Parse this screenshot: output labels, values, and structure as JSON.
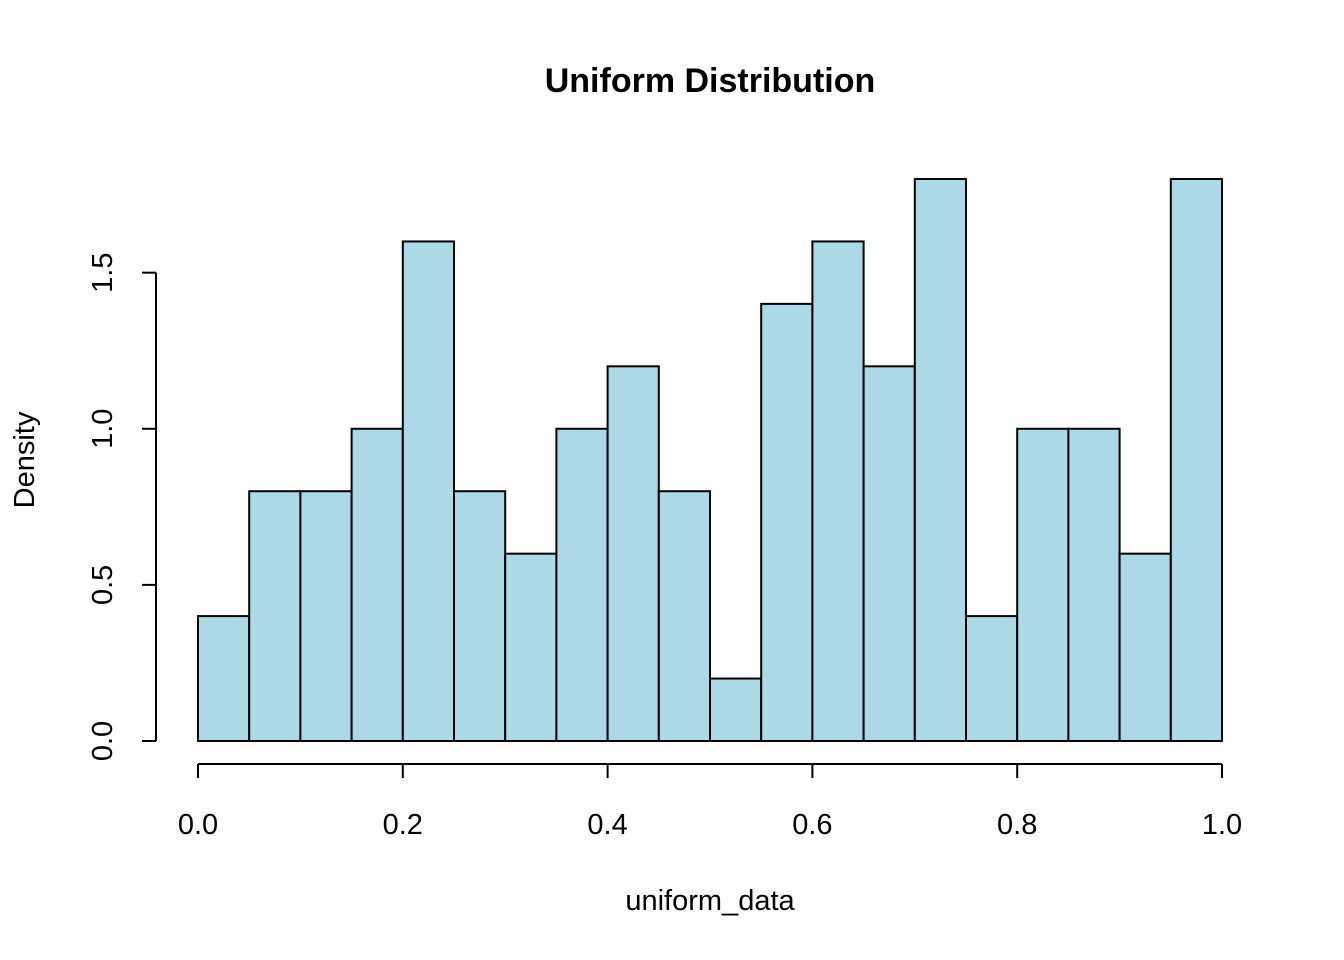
{
  "chart_data": {
    "type": "bar",
    "title": "Uniform Distribution",
    "xlabel": "uniform_data",
    "ylabel": "Density",
    "bin_edges": [
      0.0,
      0.05,
      0.1,
      0.15,
      0.2,
      0.25,
      0.3,
      0.35,
      0.4,
      0.45,
      0.5,
      0.55,
      0.6,
      0.65,
      0.7,
      0.75,
      0.8,
      0.85,
      0.9,
      0.95,
      1.0
    ],
    "values": [
      0.4,
      0.8,
      0.8,
      1.0,
      1.6,
      0.8,
      0.6,
      1.0,
      1.2,
      0.8,
      0.2,
      1.4,
      1.6,
      1.2,
      1.8,
      0.4,
      1.0,
      1.0,
      0.6,
      1.8
    ],
    "xlim": [
      0.0,
      1.0
    ],
    "ylim": [
      0.0,
      1.8
    ],
    "x_ticks": [
      0.0,
      0.2,
      0.4,
      0.6,
      0.8,
      1.0
    ],
    "x_tick_labels": [
      "0.0",
      "0.2",
      "0.4",
      "0.6",
      "0.8",
      "1.0"
    ],
    "y_ticks": [
      0.0,
      0.5,
      1.0,
      1.5
    ],
    "y_tick_labels": [
      "0.0",
      "0.5",
      "1.0",
      "1.5"
    ],
    "bar_color": "#add8e6",
    "grid": false
  }
}
